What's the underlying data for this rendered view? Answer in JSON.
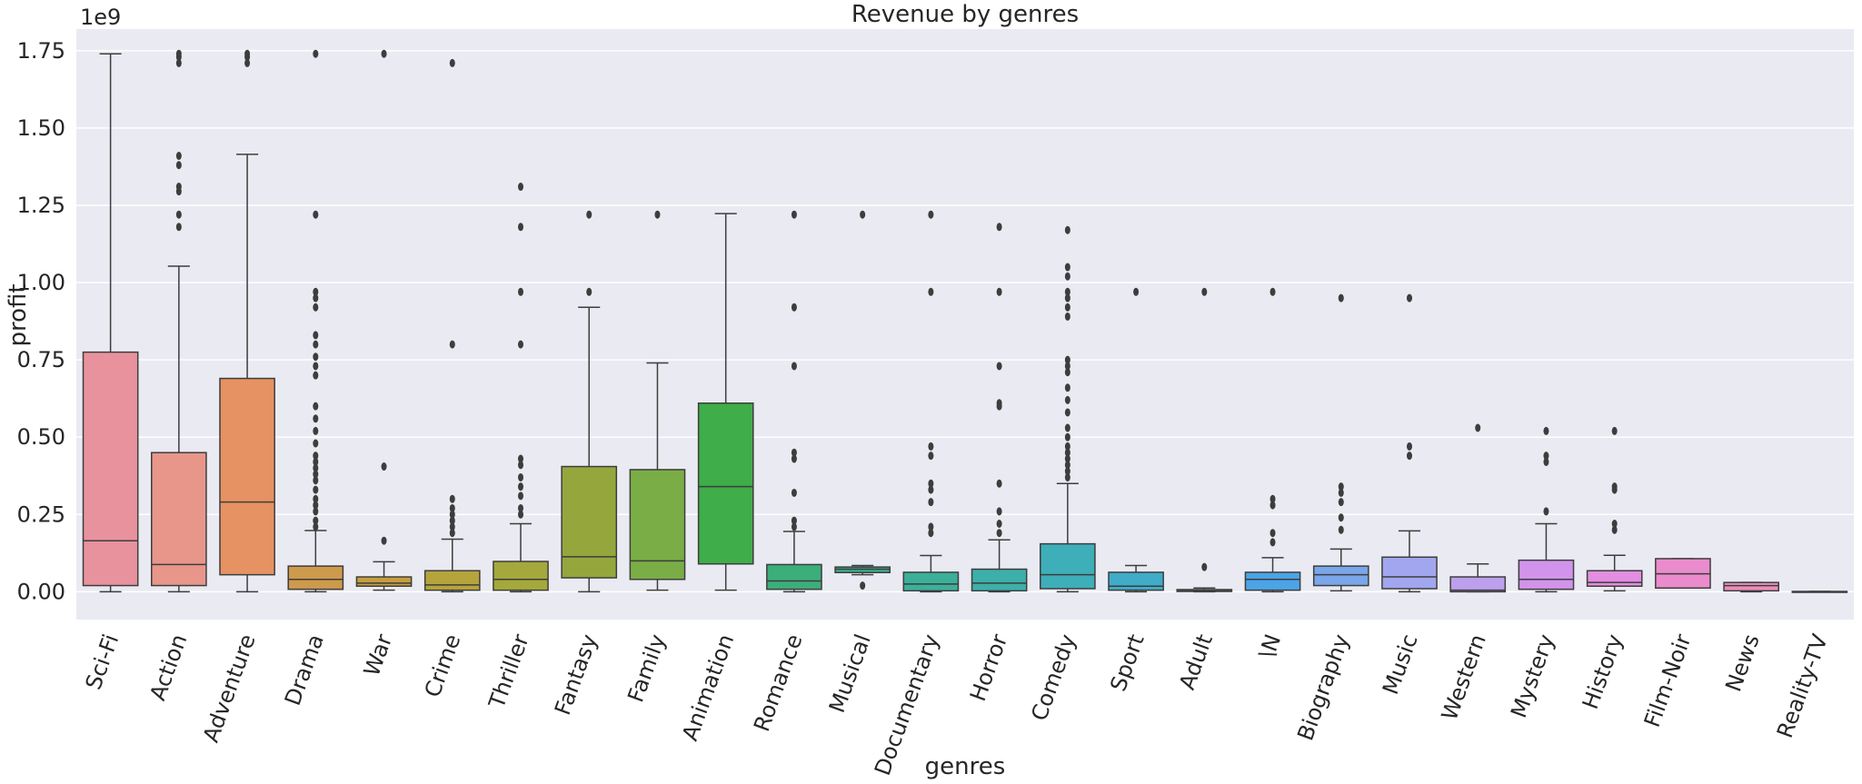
{
  "chart_data": {
    "type": "box",
    "title": "Revenue by genres",
    "xlabel": "genres",
    "ylabel": "profit",
    "y_offset_label": "1e9",
    "y_scale": 1000000000,
    "ylim": [
      -0.09,
      1.82
    ],
    "yticks": [
      0.0,
      0.25,
      0.5,
      0.75,
      1.0,
      1.25,
      1.5,
      1.75
    ],
    "ytick_labels": [
      "0.00",
      "0.25",
      "0.50",
      "0.75",
      "1.00",
      "1.25",
      "1.50",
      "1.75"
    ],
    "grid": true,
    "categories": [
      "Sci-Fi",
      "Action",
      "Adventure",
      "Drama",
      "War",
      "Crime",
      "Thriller",
      "Fantasy",
      "Family",
      "Animation",
      "Romance",
      "Musical",
      "Documentary",
      "Horror",
      "Comedy",
      "Sport",
      "Adult",
      "\\N",
      "Biography",
      "Music",
      "Western",
      "Mystery",
      "History",
      "Film-Noir",
      "News",
      "Reality-TV"
    ],
    "boxes": [
      {
        "category": "Sci-Fi",
        "color": "#e8929e",
        "whisker_low": 0.0,
        "q1": 0.02,
        "median": 0.165,
        "q3": 0.775,
        "whisker_high": 1.74,
        "outliers": []
      },
      {
        "category": "Action",
        "color": "#e8968a",
        "whisker_low": 0.0,
        "q1": 0.02,
        "median": 0.088,
        "q3": 0.45,
        "whisker_high": 1.053,
        "outliers": [
          1.18,
          1.22,
          1.295,
          1.31,
          1.38,
          1.41,
          1.71,
          1.73,
          1.74
        ]
      },
      {
        "category": "Adventure",
        "color": "#e69262",
        "whisker_low": 0.0,
        "q1": 0.055,
        "median": 0.29,
        "q3": 0.69,
        "whisker_high": 1.415,
        "outliers": [
          1.71,
          1.73,
          1.74
        ]
      },
      {
        "category": "Drama",
        "color": "#ce9a4b",
        "whisker_low": 0.0,
        "q1": 0.008,
        "median": 0.04,
        "q3": 0.083,
        "whisker_high": 0.198,
        "outliers": [
          0.21,
          0.23,
          0.26,
          0.28,
          0.3,
          0.33,
          0.36,
          0.38,
          0.4,
          0.42,
          0.44,
          0.48,
          0.52,
          0.56,
          0.6,
          0.7,
          0.73,
          0.76,
          0.8,
          0.83,
          0.92,
          0.95,
          0.97,
          1.22,
          1.74
        ]
      },
      {
        "category": "War",
        "color": "#c59e3d",
        "whisker_low": 0.005,
        "q1": 0.018,
        "median": 0.028,
        "q3": 0.048,
        "whisker_high": 0.097,
        "outliers": [
          0.165,
          0.405,
          1.74
        ]
      },
      {
        "category": "Crime",
        "color": "#b5a43b",
        "whisker_low": 0.0,
        "q1": 0.005,
        "median": 0.022,
        "q3": 0.068,
        "whisker_high": 0.17,
        "outliers": [
          0.19,
          0.21,
          0.23,
          0.25,
          0.27,
          0.3,
          0.8,
          1.71
        ]
      },
      {
        "category": "Thriller",
        "color": "#a5a83a",
        "whisker_low": 0.0,
        "q1": 0.005,
        "median": 0.04,
        "q3": 0.098,
        "whisker_high": 0.22,
        "outliers": [
          0.25,
          0.27,
          0.31,
          0.34,
          0.37,
          0.41,
          0.43,
          0.8,
          0.97,
          1.18,
          1.31
        ]
      },
      {
        "category": "Fantasy",
        "color": "#95a73c",
        "whisker_low": 0.0,
        "q1": 0.045,
        "median": 0.113,
        "q3": 0.405,
        "whisker_high": 0.92,
        "outliers": [
          0.97,
          1.22
        ]
      },
      {
        "category": "Family",
        "color": "#7aad45",
        "whisker_low": 0.005,
        "q1": 0.04,
        "median": 0.1,
        "q3": 0.395,
        "whisker_high": 0.74,
        "outliers": [
          1.22
        ]
      },
      {
        "category": "Animation",
        "color": "#3fad49",
        "whisker_low": 0.005,
        "q1": 0.09,
        "median": 0.34,
        "q3": 0.61,
        "whisker_high": 1.223,
        "outliers": []
      },
      {
        "category": "Romance",
        "color": "#3cae79",
        "whisker_low": 0.0,
        "q1": 0.008,
        "median": 0.035,
        "q3": 0.088,
        "whisker_high": 0.195,
        "outliers": [
          0.21,
          0.23,
          0.32,
          0.43,
          0.45,
          0.73,
          0.92,
          1.22
        ]
      },
      {
        "category": "Musical",
        "color": "#3cae8f",
        "whisker_low": 0.055,
        "q1": 0.062,
        "median": 0.073,
        "q3": 0.08,
        "whisker_high": 0.085,
        "outliers": [
          0.02,
          1.22
        ]
      },
      {
        "category": "Documentary",
        "color": "#3caf9b",
        "whisker_low": 0.0,
        "q1": 0.003,
        "median": 0.025,
        "q3": 0.063,
        "whisker_high": 0.117,
        "outliers": [
          0.19,
          0.21,
          0.29,
          0.33,
          0.35,
          0.44,
          0.47,
          0.97,
          1.22
        ]
      },
      {
        "category": "Horror",
        "color": "#3dafaa",
        "whisker_low": 0.0,
        "q1": 0.003,
        "median": 0.028,
        "q3": 0.073,
        "whisker_high": 0.168,
        "outliers": [
          0.19,
          0.22,
          0.26,
          0.35,
          0.6,
          0.61,
          0.73,
          0.97,
          1.18
        ]
      },
      {
        "category": "Comedy",
        "color": "#3eaeb9",
        "whisker_low": 0.0,
        "q1": 0.01,
        "median": 0.055,
        "q3": 0.155,
        "whisker_high": 0.35,
        "outliers": [
          0.37,
          0.39,
          0.41,
          0.43,
          0.45,
          0.47,
          0.5,
          0.53,
          0.58,
          0.62,
          0.66,
          0.71,
          0.73,
          0.75,
          0.89,
          0.92,
          0.95,
          0.97,
          1.02,
          1.05,
          1.17
        ]
      },
      {
        "category": "Sport",
        "color": "#40acc8",
        "whisker_low": 0.0,
        "q1": 0.005,
        "median": 0.018,
        "q3": 0.063,
        "whisker_high": 0.085,
        "outliers": [
          0.97
        ]
      },
      {
        "category": "Adult",
        "color": "#44a9d8",
        "whisker_low": 0.0,
        "q1": 0.001,
        "median": 0.003,
        "q3": 0.007,
        "whisker_high": 0.012,
        "outliers": [
          0.08,
          0.97
        ]
      },
      {
        "category": "\\N",
        "color": "#4ba4e6",
        "whisker_low": 0.0,
        "q1": 0.005,
        "median": 0.04,
        "q3": 0.063,
        "whisker_high": 0.11,
        "outliers": [
          0.16,
          0.19,
          0.28,
          0.3,
          0.97
        ]
      },
      {
        "category": "Biography",
        "color": "#7aa6ea",
        "whisker_low": 0.003,
        "q1": 0.02,
        "median": 0.055,
        "q3": 0.083,
        "whisker_high": 0.138,
        "outliers": [
          0.2,
          0.24,
          0.29,
          0.32,
          0.34,
          0.95
        ]
      },
      {
        "category": "Music",
        "color": "#a2a6ee",
        "whisker_low": 0.0,
        "q1": 0.01,
        "median": 0.048,
        "q3": 0.112,
        "whisker_high": 0.197,
        "outliers": [
          0.44,
          0.47,
          0.95
        ]
      },
      {
        "category": "Western",
        "color": "#bca0ec",
        "whisker_low": 0.0,
        "q1": 0.0,
        "median": 0.005,
        "q3": 0.048,
        "whisker_high": 0.09,
        "outliers": [
          0.53
        ]
      },
      {
        "category": "Mystery",
        "color": "#d194ea",
        "whisker_low": 0.0,
        "q1": 0.008,
        "median": 0.04,
        "q3": 0.102,
        "whisker_high": 0.22,
        "outliers": [
          0.26,
          0.42,
          0.44,
          0.52
        ]
      },
      {
        "category": "History",
        "color": "#e38ee0",
        "whisker_low": 0.003,
        "q1": 0.018,
        "median": 0.03,
        "q3": 0.068,
        "whisker_high": 0.118,
        "outliers": [
          0.2,
          0.22,
          0.33,
          0.34,
          0.52
        ]
      },
      {
        "category": "Film-Noir",
        "color": "#ea8ccc",
        "whisker_low": 0.012,
        "q1": 0.012,
        "median": 0.058,
        "q3": 0.107,
        "whisker_high": 0.107,
        "outliers": []
      },
      {
        "category": "News",
        "color": "#ea8fbd",
        "whisker_low": 0.0,
        "q1": 0.003,
        "median": 0.02,
        "q3": 0.03,
        "whisker_high": 0.03,
        "outliers": []
      },
      {
        "category": "Reality-TV",
        "color": "#e993b0",
        "whisker_low": 0.0,
        "q1": 0.0,
        "median": 0.0,
        "q3": 0.001,
        "whisker_high": 0.001,
        "outliers": []
      }
    ]
  }
}
